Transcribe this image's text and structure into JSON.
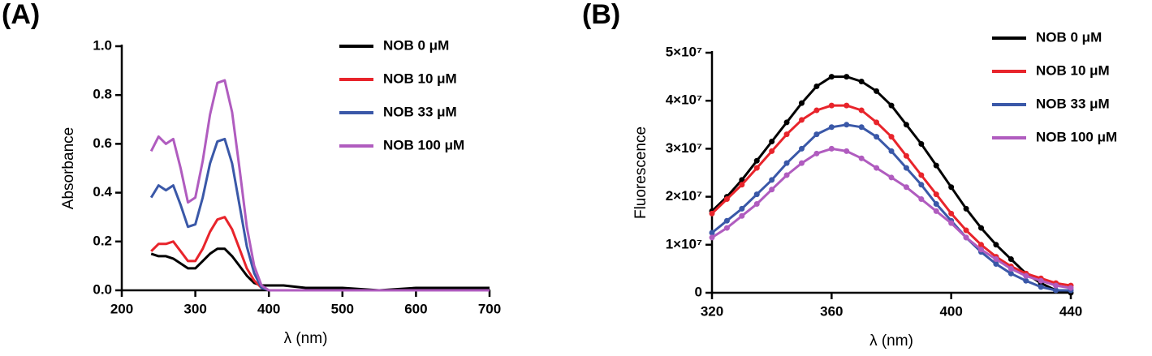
{
  "chart_data": [
    {
      "type": "line",
      "panel_label": "(A)",
      "x_label": "λ (nm)",
      "y_label": "Absorbance",
      "x": [
        240,
        250,
        260,
        270,
        280,
        290,
        300,
        310,
        320,
        330,
        340,
        350,
        360,
        370,
        380,
        390,
        400,
        410,
        420,
        450,
        500,
        550,
        600,
        650,
        700
      ],
      "series": [
        {
          "name": "NOB 0 μM",
          "color": "#000000",
          "values": [
            0.15,
            0.14,
            0.14,
            0.13,
            0.11,
            0.09,
            0.09,
            0.12,
            0.15,
            0.17,
            0.17,
            0.14,
            0.1,
            0.06,
            0.03,
            0.02,
            0.02,
            0.02,
            0.02,
            0.01,
            0.01,
            0.0,
            0.01,
            0.01,
            0.01
          ]
        },
        {
          "name": "NOB 10 μM",
          "color": "#e8242b",
          "values": [
            0.16,
            0.19,
            0.19,
            0.2,
            0.16,
            0.12,
            0.12,
            0.17,
            0.24,
            0.29,
            0.3,
            0.25,
            0.17,
            0.09,
            0.04,
            0.01,
            0.0,
            0.0,
            0.0,
            0.0,
            0.0,
            0.0,
            0.0,
            0.0,
            0.0
          ]
        },
        {
          "name": "NOB 33 μM",
          "color": "#3a58a8",
          "values": [
            0.38,
            0.43,
            0.41,
            0.43,
            0.35,
            0.26,
            0.27,
            0.38,
            0.52,
            0.61,
            0.62,
            0.52,
            0.35,
            0.18,
            0.07,
            0.01,
            0.0,
            0.0,
            0.0,
            0.0,
            0.0,
            0.0,
            0.0,
            0.0,
            0.0
          ]
        },
        {
          "name": "NOB 100 μM",
          "color": "#b05cbf",
          "values": [
            0.57,
            0.63,
            0.6,
            0.62,
            0.5,
            0.36,
            0.38,
            0.53,
            0.72,
            0.85,
            0.86,
            0.73,
            0.5,
            0.26,
            0.1,
            0.02,
            0.0,
            0.0,
            0.0,
            0.0,
            0.0,
            0.0,
            0.0,
            0.0,
            0.0
          ]
        }
      ],
      "xlim": [
        200,
        700
      ],
      "xticks": [
        200,
        300,
        400,
        500,
        600,
        700
      ],
      "ylim": [
        0,
        1
      ],
      "yticks": [
        {
          "value": 0,
          "label": "0.0"
        },
        0.2,
        0.4,
        0.6,
        0.8,
        {
          "value": 1,
          "label": "1.0"
        }
      ],
      "markers": false,
      "legend": "upper right"
    },
    {
      "type": "line",
      "panel_label": "(B)",
      "x_label": "λ (nm)",
      "y_label": "Fluorescence",
      "x": [
        320,
        325,
        330,
        335,
        340,
        345,
        350,
        355,
        360,
        365,
        370,
        375,
        380,
        385,
        390,
        395,
        400,
        405,
        410,
        415,
        420,
        425,
        430,
        435,
        440
      ],
      "series": [
        {
          "name": "NOB 0 μM",
          "color": "#000000",
          "values": [
            17000000.0,
            20000000.0,
            23500000.0,
            27500000.0,
            31500000.0,
            35500000.0,
            39500000.0,
            43000000.0,
            45000000.0,
            45000000.0,
            44000000.0,
            42000000.0,
            39000000.0,
            35000000.0,
            31000000.0,
            26500000.0,
            22000000.0,
            17500000.0,
            13500000.0,
            10000000.0,
            7000000.0,
            4000000.0,
            2000000.0,
            500000.0,
            0
          ]
        },
        {
          "name": "NOB 10 μM",
          "color": "#e8242b",
          "values": [
            16500000.0,
            19500000.0,
            22500000.0,
            26000000.0,
            29500000.0,
            33000000.0,
            36000000.0,
            38000000.0,
            39000000.0,
            39000000.0,
            38000000.0,
            35500000.0,
            32500000.0,
            28500000.0,
            24500000.0,
            20500000.0,
            16500000.0,
            13000000.0,
            10000000.0,
            7500000.0,
            5500000.0,
            4000000.0,
            3000000.0,
            2000000.0,
            1500000.0
          ]
        },
        {
          "name": "NOB 33 μM",
          "color": "#3a58a8",
          "values": [
            12500000.0,
            15000000.0,
            17500000.0,
            20500000.0,
            23500000.0,
            27000000.0,
            30000000.0,
            33000000.0,
            34500000.0,
            35000000.0,
            34500000.0,
            32500000.0,
            29500000.0,
            26000000.0,
            22500000.0,
            18500000.0,
            15000000.0,
            11500000.0,
            8500000.0,
            6000000.0,
            4000000.0,
            2500000.0,
            1200000.0,
            500000.0,
            500000.0
          ]
        },
        {
          "name": "NOB 100 μM",
          "color": "#b05cbf",
          "values": [
            11500000.0,
            13500000.0,
            16000000.0,
            18500000.0,
            21500000.0,
            24500000.0,
            27000000.0,
            29000000.0,
            30000000.0,
            29500000.0,
            28000000.0,
            26000000.0,
            24000000.0,
            22000000.0,
            19500000.0,
            17000000.0,
            14500000.0,
            11500000.0,
            9000000.0,
            7000000.0,
            5000000.0,
            3500000.0,
            2500000.0,
            1500000.0,
            1000000.0
          ]
        }
      ],
      "xlim": [
        320,
        440
      ],
      "xticks": [
        320,
        360,
        400,
        440
      ],
      "ylim": [
        0,
        50000000
      ],
      "yticks": [
        0,
        {
          "value": 10000000,
          "label": "1×10⁷"
        },
        {
          "value": 20000000,
          "label": "2×10⁷"
        },
        {
          "value": 30000000,
          "label": "3×10⁷"
        },
        {
          "value": 40000000,
          "label": "4×10⁷"
        },
        {
          "value": 50000000,
          "label": "5×10⁷"
        }
      ],
      "markers": true,
      "legend": "upper right"
    }
  ]
}
